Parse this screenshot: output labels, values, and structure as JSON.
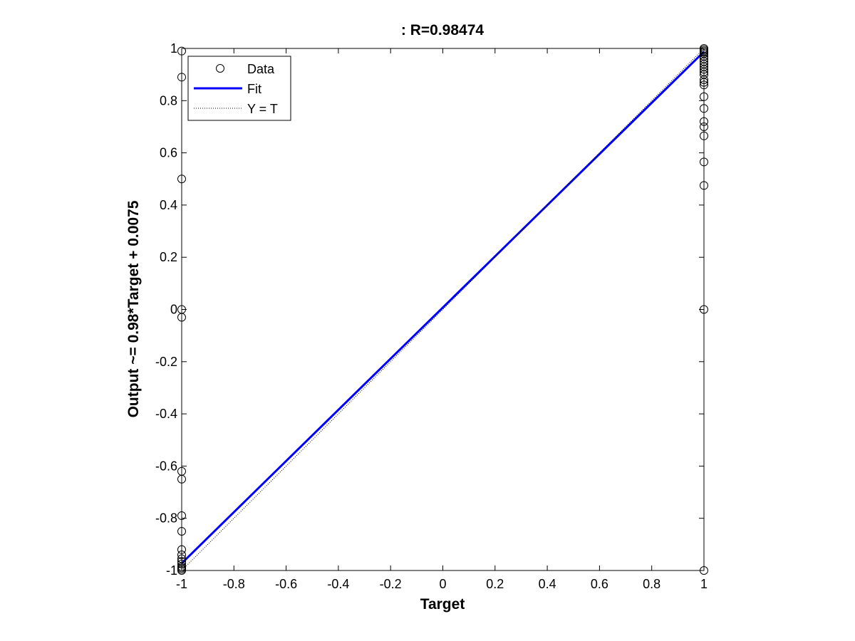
{
  "chart_data": {
    "type": "scatter",
    "title": ": R=0.98474",
    "xlabel": "Target",
    "ylabel": "Output ~= 0.98*Target + 0.0075",
    "xlim": [
      -1,
      1
    ],
    "ylim": [
      -1,
      1
    ],
    "xticks": [
      "-1",
      "-0.8",
      "-0.6",
      "-0.4",
      "-0.2",
      "0",
      "0.2",
      "0.4",
      "0.6",
      "0.8",
      "1"
    ],
    "yticks": [
      "-1",
      "-0.8",
      "-0.6",
      "-0.4",
      "-0.2",
      "0",
      "0.2",
      "0.4",
      "0.6",
      "0.8",
      "1"
    ],
    "grid": false,
    "legend_position": "top-left",
    "legend": [
      {
        "label": "Data",
        "marker": "circle"
      },
      {
        "label": "Fit",
        "line": "solid",
        "color": "#0000ff"
      },
      {
        "label": "Y = T",
        "line": "dotted",
        "color": "#000000"
      }
    ],
    "series": [
      {
        "name": "Data",
        "color": "#000000",
        "points": [
          {
            "x": -1,
            "y": 0.99
          },
          {
            "x": -1,
            "y": 0.89
          },
          {
            "x": -1,
            "y": 0.5
          },
          {
            "x": -1,
            "y": 0.0
          },
          {
            "x": -1,
            "y": -0.03
          },
          {
            "x": -1,
            "y": -0.62
          },
          {
            "x": -1,
            "y": -0.65
          },
          {
            "x": -1,
            "y": -0.79
          },
          {
            "x": -1,
            "y": -0.85
          },
          {
            "x": -1,
            "y": -0.92
          },
          {
            "x": -1,
            "y": -0.94
          },
          {
            "x": -1,
            "y": -0.955
          },
          {
            "x": -1,
            "y": -0.965
          },
          {
            "x": -1,
            "y": -0.975
          },
          {
            "x": -1,
            "y": -0.985
          },
          {
            "x": -1,
            "y": -0.99
          },
          {
            "x": -1,
            "y": -0.995
          },
          {
            "x": -1,
            "y": -1.0
          },
          {
            "x": 1,
            "y": 1.0
          },
          {
            "x": 1,
            "y": 0.995
          },
          {
            "x": 1,
            "y": 0.99
          },
          {
            "x": 1,
            "y": 0.985
          },
          {
            "x": 1,
            "y": 0.98
          },
          {
            "x": 1,
            "y": 0.97
          },
          {
            "x": 1,
            "y": 0.96
          },
          {
            "x": 1,
            "y": 0.95
          },
          {
            "x": 1,
            "y": 0.94
          },
          {
            "x": 1,
            "y": 0.93
          },
          {
            "x": 1,
            "y": 0.92
          },
          {
            "x": 1,
            "y": 0.91
          },
          {
            "x": 1,
            "y": 0.9
          },
          {
            "x": 1,
            "y": 0.88
          },
          {
            "x": 1,
            "y": 0.87
          },
          {
            "x": 1,
            "y": 0.86
          },
          {
            "x": 1,
            "y": 0.815
          },
          {
            "x": 1,
            "y": 0.77
          },
          {
            "x": 1,
            "y": 0.72
          },
          {
            "x": 1,
            "y": 0.7
          },
          {
            "x": 1,
            "y": 0.665
          },
          {
            "x": 1,
            "y": 0.565
          },
          {
            "x": 1,
            "y": 0.475
          },
          {
            "x": 1,
            "y": 0.0
          },
          {
            "x": 1,
            "y": -1.0
          }
        ]
      },
      {
        "name": "Fit",
        "color": "#0000ff",
        "slope": 0.98,
        "intercept": 0.0075,
        "x": [
          -1,
          1
        ]
      },
      {
        "name": "Y = T",
        "color": "#000000",
        "slope": 1,
        "intercept": 0,
        "x": [
          -1,
          1
        ]
      }
    ]
  }
}
